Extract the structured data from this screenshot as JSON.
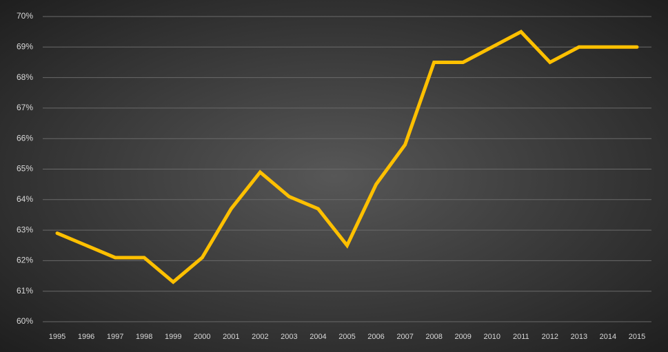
{
  "chart_data": {
    "type": "line",
    "categories": [
      "1995",
      "1996",
      "1997",
      "1998",
      "1999",
      "2000",
      "2001",
      "2002",
      "2003",
      "2004",
      "2005",
      "2006",
      "2007",
      "2008",
      "2009",
      "2010",
      "2011",
      "2012",
      "2013",
      "2014",
      "2015"
    ],
    "values": [
      62.9,
      62.5,
      62.1,
      62.1,
      61.3,
      62.1,
      63.7,
      64.9,
      64.1,
      63.7,
      62.5,
      64.5,
      65.8,
      68.5,
      68.5,
      69.0,
      69.5,
      68.5,
      69.0,
      69.0,
      69.0
    ],
    "color": "#ffc000",
    "ylim": [
      60,
      70
    ],
    "yticks": [
      {
        "value": 60,
        "label": "60%"
      },
      {
        "value": 61,
        "label": "61%"
      },
      {
        "value": 62,
        "label": "62%"
      },
      {
        "value": 63,
        "label": "63%"
      },
      {
        "value": 64,
        "label": "64%"
      },
      {
        "value": 65,
        "label": "65%"
      },
      {
        "value": 66,
        "label": "66%"
      },
      {
        "value": 67,
        "label": "67%"
      },
      {
        "value": 68,
        "label": "68%"
      },
      {
        "value": 69,
        "label": "69%"
      },
      {
        "value": 70,
        "label": "70%"
      }
    ],
    "grid": true
  }
}
